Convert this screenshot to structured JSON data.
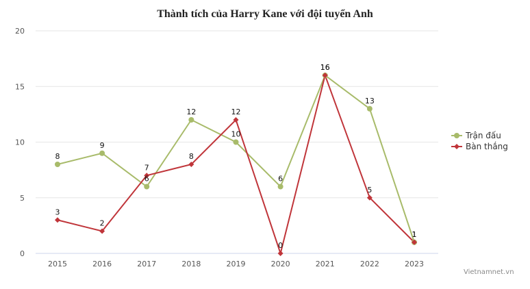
{
  "chart_data": {
    "type": "line",
    "title": "Thành tích của Harry Kane với đội tuyển Anh",
    "xlabel": "",
    "ylabel": "",
    "categories": [
      "2015",
      "2016",
      "2017",
      "2018",
      "2019",
      "2020",
      "2021",
      "2022",
      "2023"
    ],
    "series": [
      {
        "name": "Trận đấu",
        "color": "#a8bb6a",
        "marker": "circle",
        "values": [
          8,
          9,
          6,
          12,
          10,
          6,
          16,
          13,
          1
        ]
      },
      {
        "name": "Bàn thắng",
        "color": "#c0353a",
        "marker": "diamond",
        "values": [
          3,
          2,
          7,
          8,
          12,
          0,
          16,
          5,
          1
        ]
      }
    ],
    "ylim": [
      0,
      20
    ],
    "yticks": [
      "0",
      "5",
      "10",
      "15",
      "20"
    ],
    "grid": true,
    "legend_position": "right",
    "data_labels": true
  },
  "legend": {
    "items": [
      "Trận đấu",
      "Bàn thắng"
    ]
  },
  "credit": "Vietnamnet.vn"
}
